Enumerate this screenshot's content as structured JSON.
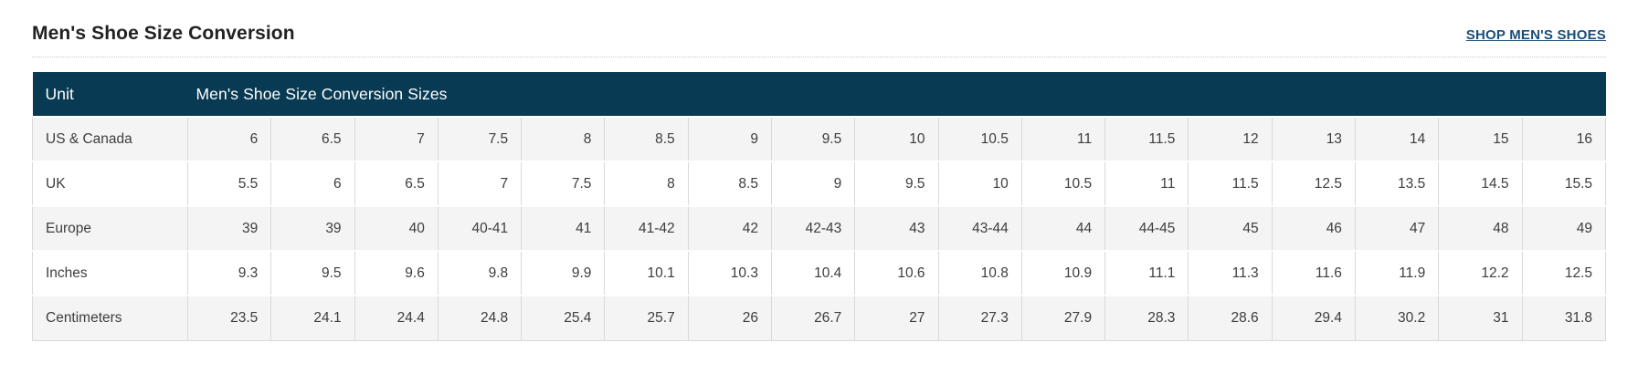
{
  "page": {
    "title": "Men's Shoe Size Conversion",
    "shop_link_label": "SHOP MEN'S SHOES"
  },
  "table": {
    "header": {
      "unit_label": "Unit",
      "sizes_label": "Men's Shoe Size Conversion Sizes"
    },
    "columns_count": 17,
    "rows": [
      {
        "label": "US & Canada",
        "values": [
          "6",
          "6.5",
          "7",
          "7.5",
          "8",
          "8.5",
          "9",
          "9.5",
          "10",
          "10.5",
          "11",
          "11.5",
          "12",
          "13",
          "14",
          "15",
          "16"
        ]
      },
      {
        "label": "UK",
        "values": [
          "5.5",
          "6",
          "6.5",
          "7",
          "7.5",
          "8",
          "8.5",
          "9",
          "9.5",
          "10",
          "10.5",
          "11",
          "11.5",
          "12.5",
          "13.5",
          "14.5",
          "15.5"
        ]
      },
      {
        "label": "Europe",
        "values": [
          "39",
          "39",
          "40",
          "40-41",
          "41",
          "41-42",
          "42",
          "42-43",
          "43",
          "43-44",
          "44",
          "44-45",
          "45",
          "46",
          "47",
          "48",
          "49"
        ]
      },
      {
        "label": "Inches",
        "values": [
          "9.3",
          "9.5",
          "9.6",
          "9.8",
          "9.9",
          "10.1",
          "10.3",
          "10.4",
          "10.6",
          "10.8",
          "10.9",
          "11.1",
          "11.3",
          "11.6",
          "11.9",
          "12.2",
          "12.5"
        ]
      },
      {
        "label": "Centimeters",
        "values": [
          "23.5",
          "24.1",
          "24.4",
          "24.8",
          "25.4",
          "25.7",
          "26",
          "26.7",
          "27",
          "27.3",
          "27.9",
          "28.3",
          "28.6",
          "29.4",
          "30.2",
          "31",
          "31.8"
        ]
      }
    ]
  },
  "colors": {
    "header_bg": "#083a53",
    "link_color": "#1b4d7a",
    "title_color": "#222222",
    "text_color": "#3d3d3d",
    "alt_row_bg": "#f4f4f4",
    "border_color": "#d9d9d9",
    "divider_color": "#c8c8c8"
  }
}
